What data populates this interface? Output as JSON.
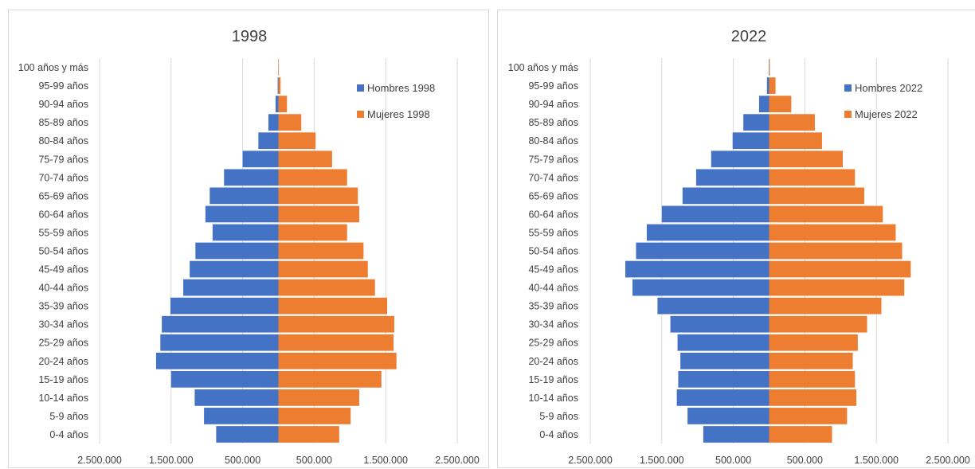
{
  "chart_data": [
    {
      "type": "bar",
      "orientation": "horizontal",
      "title": "1998",
      "categories": [
        "0-4 años",
        "5-9 años",
        "10-14 años",
        "15-19 años",
        "20-24 años",
        "25-29 años",
        "30-34 años",
        "35-39 años",
        "40-44 años",
        "45-49 años",
        "50-54 años",
        "55-59 años",
        "60-64 años",
        "65-69 años",
        "70-74 años",
        "75-79 años",
        "80-84 años",
        "85-89 años",
        "90-94 años",
        "95-99 años",
        "100 años y más"
      ],
      "series": [
        {
          "name": "Hombres 1998",
          "color": "#4472c4",
          "side": "left",
          "values": [
            870000,
            1040000,
            1170000,
            1500000,
            1710000,
            1650000,
            1630000,
            1510000,
            1330000,
            1240000,
            1160000,
            920000,
            1020000,
            960000,
            760000,
            500000,
            280000,
            140000,
            40000,
            10000,
            2000
          ]
        },
        {
          "name": "Mujeres 1998",
          "color": "#ed7d31",
          "side": "right",
          "values": [
            850000,
            1010000,
            1130000,
            1440000,
            1650000,
            1610000,
            1620000,
            1520000,
            1350000,
            1250000,
            1190000,
            960000,
            1130000,
            1110000,
            960000,
            750000,
            520000,
            320000,
            120000,
            30000,
            3000
          ]
        }
      ],
      "x_tick_labels": [
        "2.500.000",
        "1.500.000",
        "500.000",
        "500.000",
        "1.500.000",
        "2.500.000"
      ],
      "xlim": [
        -2500000,
        2500000
      ],
      "grid": true,
      "legend_position": "top-right"
    },
    {
      "type": "bar",
      "orientation": "horizontal",
      "title": "2022",
      "categories": [
        "0-4 años",
        "5-9 años",
        "10-14 años",
        "15-19 años",
        "20-24 años",
        "25-29 años",
        "30-34 años",
        "35-39 años",
        "40-44 años",
        "45-49 años",
        "50-54 años",
        "55-59 años",
        "60-64 años",
        "65-69 años",
        "70-74 años",
        "75-79 años",
        "80-84 años",
        "85-89 años",
        "90-94 años",
        "95-99 años",
        "100 años y más"
      ],
      "series": [
        {
          "name": "Hombres 2022",
          "color": "#4472c4",
          "side": "left",
          "values": [
            920000,
            1140000,
            1290000,
            1270000,
            1240000,
            1280000,
            1380000,
            1560000,
            1910000,
            2010000,
            1860000,
            1710000,
            1500000,
            1210000,
            1020000,
            810000,
            510000,
            360000,
            140000,
            30000,
            4000
          ]
        },
        {
          "name": "Mujeres 2022",
          "color": "#ed7d31",
          "side": "right",
          "values": [
            880000,
            1090000,
            1220000,
            1200000,
            1170000,
            1240000,
            1370000,
            1570000,
            1890000,
            1980000,
            1860000,
            1770000,
            1590000,
            1330000,
            1200000,
            1030000,
            740000,
            640000,
            310000,
            90000,
            10000
          ]
        }
      ],
      "x_tick_labels": [
        "2.500.000",
        "1.500.000",
        "500.000",
        "500.000",
        "1.500.000",
        "2.500.000"
      ],
      "xlim": [
        -2500000,
        2500000
      ],
      "grid": true,
      "legend_position": "top-right"
    }
  ]
}
